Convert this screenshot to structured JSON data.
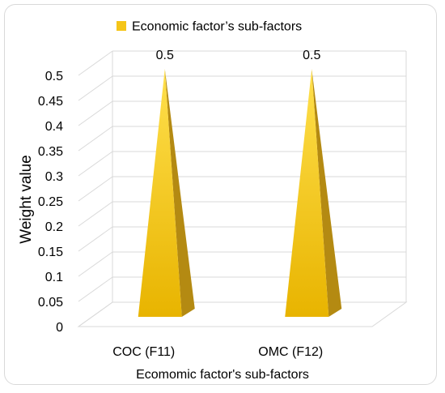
{
  "chart_data": {
    "type": "bar",
    "shape": "pyramid-3d",
    "title": "",
    "legend": {
      "position": "top",
      "label": "Economic factor’s sub-factors"
    },
    "categories": [
      "COC (F11)",
      "OMC (F12)"
    ],
    "series": [
      {
        "name": "Economic factor’s sub-factors",
        "values": [
          0.5,
          0.5
        ]
      }
    ],
    "data_labels": [
      "0.5",
      "0.5"
    ],
    "xlabel": "Ecomomic factor's sub-factors",
    "ylabel": "Weight value",
    "ylim": [
      0,
      0.5
    ],
    "yticks": [
      "0",
      "0.05",
      "0.1",
      "0.15",
      "0.2",
      "0.25",
      "0.3",
      "0.35",
      "0.4",
      "0.45",
      "0.5"
    ],
    "grid": true,
    "colors": {
      "bar_front": "#f5c518",
      "bar_side": "#b48a12",
      "bar_top": "#ffd84a",
      "grid": "#d9d9d9",
      "legend_swatch": "#f5c518"
    }
  }
}
